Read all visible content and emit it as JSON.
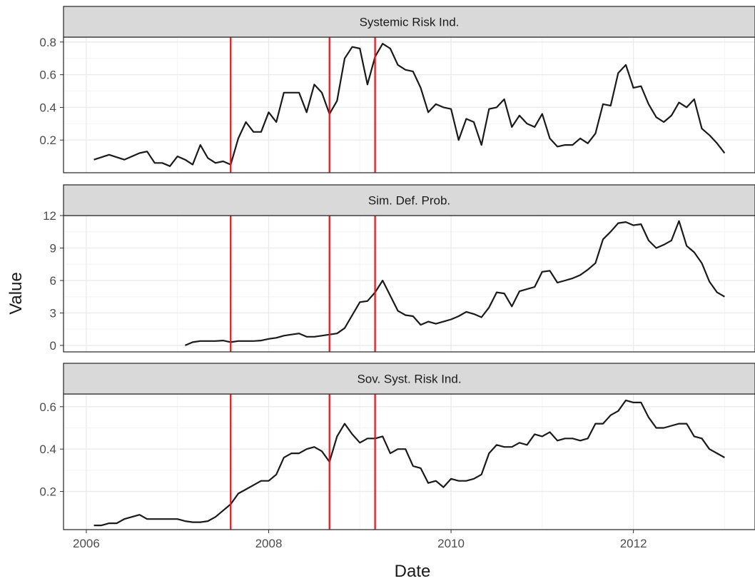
{
  "ylabel": "Value",
  "xlabel": "Date",
  "x_ticks": [
    "2006",
    "2008",
    "2010",
    "2012"
  ],
  "colors": {
    "line": "#1a1a1a",
    "event": "#e8141b",
    "strip": "#d9d9d9",
    "grid": "#ebebeb"
  },
  "chart_data": {
    "type": "line",
    "facets": [
      "Systemic Risk Ind.",
      "Sim. Def. Prob.",
      "Sov. Syst. Risk Ind."
    ],
    "xlim": [
      "2005-10",
      "2013-05"
    ],
    "event_lines": [
      "2007-08",
      "2008-09",
      "2009-03"
    ],
    "grid": true,
    "panels": [
      {
        "title": "Systemic Risk Ind.",
        "ylim": [
          0,
          0.83
        ],
        "yticks": [
          0.2,
          0.4,
          0.6,
          0.8
        ],
        "ytick_labels": [
          "0.2",
          "0.4",
          "0.6",
          "0.8"
        ],
        "x": [
          "2006-02",
          "2006-04",
          "2006-06",
          "2006-08",
          "2006-09",
          "2006-10",
          "2006-11",
          "2006-12",
          "2007-01",
          "2007-02",
          "2007-03",
          "2007-04",
          "2007-05",
          "2007-06",
          "2007-07",
          "2007-08",
          "2007-09",
          "2007-10",
          "2007-11",
          "2007-12",
          "2008-01",
          "2008-02",
          "2008-03",
          "2008-04",
          "2008-05",
          "2008-06",
          "2008-07",
          "2008-08",
          "2008-09",
          "2008-10",
          "2008-11",
          "2008-12",
          "2009-01",
          "2009-02",
          "2009-03",
          "2009-04",
          "2009-05",
          "2009-06",
          "2009-07",
          "2009-08",
          "2009-09",
          "2009-10",
          "2009-11",
          "2009-12",
          "2010-01",
          "2010-02",
          "2010-03",
          "2010-04",
          "2010-05",
          "2010-06",
          "2010-07",
          "2010-08",
          "2010-09",
          "2010-10",
          "2010-11",
          "2010-12",
          "2011-01",
          "2011-02",
          "2011-03",
          "2011-04",
          "2011-05",
          "2011-06",
          "2011-07",
          "2011-08",
          "2011-09",
          "2011-10",
          "2011-11",
          "2011-12",
          "2012-01",
          "2012-02",
          "2012-03",
          "2012-04",
          "2012-05",
          "2012-06",
          "2012-07",
          "2012-08",
          "2012-09",
          "2012-10",
          "2012-11",
          "2012-12",
          "2013-01"
        ],
        "values": [
          0.08,
          0.11,
          0.08,
          0.12,
          0.13,
          0.06,
          0.06,
          0.04,
          0.1,
          0.08,
          0.05,
          0.17,
          0.09,
          0.06,
          0.07,
          0.05,
          0.21,
          0.31,
          0.25,
          0.25,
          0.37,
          0.31,
          0.49,
          0.49,
          0.49,
          0.37,
          0.54,
          0.49,
          0.36,
          0.44,
          0.7,
          0.77,
          0.76,
          0.54,
          0.71,
          0.79,
          0.76,
          0.66,
          0.63,
          0.62,
          0.52,
          0.37,
          0.42,
          0.4,
          0.39,
          0.2,
          0.33,
          0.31,
          0.17,
          0.39,
          0.4,
          0.45,
          0.28,
          0.35,
          0.3,
          0.28,
          0.36,
          0.21,
          0.16,
          0.17,
          0.17,
          0.21,
          0.18,
          0.24,
          0.42,
          0.41,
          0.61,
          0.66,
          0.52,
          0.53,
          0.42,
          0.34,
          0.31,
          0.35,
          0.43,
          0.4,
          0.45,
          0.27,
          0.23,
          0.18,
          0.12
        ]
      },
      {
        "title": "Sim. Def. Prob.",
        "ylim": [
          -0.6,
          12.0
        ],
        "yticks": [
          0,
          3,
          6,
          9,
          12
        ],
        "ytick_labels": [
          "0",
          "3",
          "6",
          "9",
          "12"
        ],
        "x": [
          "2007-02",
          "2007-03",
          "2007-04",
          "2007-05",
          "2007-06",
          "2007-07",
          "2007-08",
          "2007-09",
          "2007-10",
          "2007-11",
          "2007-12",
          "2008-01",
          "2008-02",
          "2008-03",
          "2008-04",
          "2008-05",
          "2008-06",
          "2008-07",
          "2008-08",
          "2008-09",
          "2008-10",
          "2008-11",
          "2008-12",
          "2009-01",
          "2009-02",
          "2009-03",
          "2009-04",
          "2009-05",
          "2009-06",
          "2009-07",
          "2009-08",
          "2009-09",
          "2009-10",
          "2009-11",
          "2009-12",
          "2010-01",
          "2010-02",
          "2010-03",
          "2010-04",
          "2010-05",
          "2010-06",
          "2010-07",
          "2010-08",
          "2010-09",
          "2010-10",
          "2010-11",
          "2010-12",
          "2011-01",
          "2011-02",
          "2011-03",
          "2011-04",
          "2011-05",
          "2011-06",
          "2011-07",
          "2011-08",
          "2011-09",
          "2011-10",
          "2011-11",
          "2011-12",
          "2012-01",
          "2012-02",
          "2012-03",
          "2012-04",
          "2012-05",
          "2012-06",
          "2012-07",
          "2012-08",
          "2012-09",
          "2012-10",
          "2012-11",
          "2012-12",
          "2013-01"
        ],
        "values": [
          0.0,
          0.3,
          0.4,
          0.4,
          0.4,
          0.45,
          0.3,
          0.4,
          0.4,
          0.4,
          0.45,
          0.6,
          0.7,
          0.9,
          1.0,
          1.1,
          0.8,
          0.8,
          0.9,
          1.0,
          1.1,
          1.6,
          2.8,
          4.0,
          4.1,
          4.9,
          6.0,
          4.6,
          3.2,
          2.8,
          2.7,
          1.9,
          2.2,
          2.0,
          2.2,
          2.4,
          2.7,
          3.1,
          2.9,
          2.6,
          3.5,
          4.9,
          4.8,
          3.6,
          5.0,
          5.2,
          5.4,
          6.8,
          6.9,
          5.8,
          6.0,
          6.2,
          6.5,
          7.0,
          7.6,
          9.8,
          10.5,
          11.3,
          11.4,
          11.1,
          11.2,
          9.7,
          9.0,
          9.3,
          9.7,
          11.5,
          9.2,
          8.6,
          7.6,
          5.9,
          4.9,
          4.5
        ]
      },
      {
        "title": "Sov. Syst. Risk Ind.",
        "ylim": [
          0.02,
          0.66
        ],
        "yticks": [
          0.2,
          0.4,
          0.6
        ],
        "ytick_labels": [
          "0.2",
          "0.4",
          "0.6"
        ],
        "x": [
          "2006-02",
          "2006-03",
          "2006-04",
          "2006-05",
          "2006-06",
          "2006-07",
          "2006-08",
          "2006-09",
          "2006-10",
          "2006-11",
          "2006-12",
          "2007-01",
          "2007-02",
          "2007-03",
          "2007-04",
          "2007-05",
          "2007-06",
          "2007-07",
          "2007-08",
          "2007-09",
          "2007-10",
          "2007-11",
          "2007-12",
          "2008-01",
          "2008-02",
          "2008-03",
          "2008-04",
          "2008-05",
          "2008-06",
          "2008-07",
          "2008-08",
          "2008-09",
          "2008-10",
          "2008-11",
          "2008-12",
          "2009-01",
          "2009-02",
          "2009-03",
          "2009-04",
          "2009-05",
          "2009-06",
          "2009-07",
          "2009-08",
          "2009-09",
          "2009-10",
          "2009-11",
          "2009-12",
          "2010-01",
          "2010-02",
          "2010-03",
          "2010-04",
          "2010-05",
          "2010-06",
          "2010-07",
          "2010-08",
          "2010-09",
          "2010-10",
          "2010-11",
          "2010-12",
          "2011-01",
          "2011-02",
          "2011-03",
          "2011-04",
          "2011-05",
          "2011-06",
          "2011-07",
          "2011-08",
          "2011-09",
          "2011-10",
          "2011-11",
          "2011-12",
          "2012-01",
          "2012-02",
          "2012-03",
          "2012-04",
          "2012-05",
          "2012-06",
          "2012-07",
          "2012-08",
          "2012-09",
          "2012-10",
          "2012-11",
          "2012-12",
          "2013-01"
        ],
        "values": [
          0.04,
          0.04,
          0.05,
          0.05,
          0.07,
          0.08,
          0.09,
          0.07,
          0.07,
          0.07,
          0.07,
          0.07,
          0.06,
          0.055,
          0.055,
          0.06,
          0.08,
          0.11,
          0.14,
          0.19,
          0.21,
          0.23,
          0.25,
          0.25,
          0.28,
          0.36,
          0.38,
          0.38,
          0.4,
          0.41,
          0.39,
          0.34,
          0.46,
          0.52,
          0.47,
          0.43,
          0.45,
          0.45,
          0.46,
          0.38,
          0.4,
          0.4,
          0.32,
          0.31,
          0.24,
          0.25,
          0.22,
          0.26,
          0.25,
          0.25,
          0.26,
          0.28,
          0.38,
          0.42,
          0.41,
          0.41,
          0.43,
          0.42,
          0.47,
          0.46,
          0.48,
          0.44,
          0.45,
          0.45,
          0.44,
          0.45,
          0.52,
          0.52,
          0.56,
          0.58,
          0.63,
          0.62,
          0.62,
          0.55,
          0.5,
          0.5,
          0.51,
          0.52,
          0.52,
          0.46,
          0.45,
          0.4,
          0.38,
          0.36
        ]
      }
    ]
  }
}
